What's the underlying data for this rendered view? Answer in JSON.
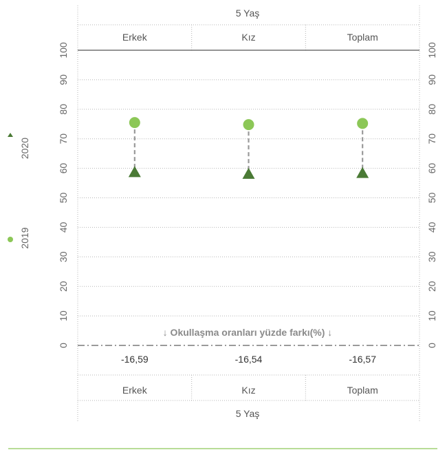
{
  "chart_data": {
    "type": "dot",
    "group_label": "5 Yaş",
    "categories": [
      "Erkek",
      "Kız",
      "Toplam"
    ],
    "series": [
      {
        "name": "2019",
        "marker": "circle",
        "color": "#8cc757",
        "values": [
          75.5,
          74.8,
          75.2
        ]
      },
      {
        "name": "2020",
        "marker": "triangle",
        "color": "#4a7a35",
        "values": [
          58.9,
          58.3,
          58.6
        ]
      }
    ],
    "ylim": [
      0,
      100
    ],
    "yticks": [
      "0",
      "10",
      "20",
      "30",
      "40",
      "50",
      "60",
      "70",
      "80",
      "90",
      "100"
    ],
    "grid": true,
    "legend": "left",
    "difference_title": "↓  Okullaşma oranları yüzde farkı(%)  ↓",
    "differences": [
      "-16,59",
      "-16,54",
      "-16,57"
    ]
  },
  "colors": {
    "connector": "#999999",
    "grid": "#b5b5b5",
    "footer_line": "#8cc757"
  }
}
